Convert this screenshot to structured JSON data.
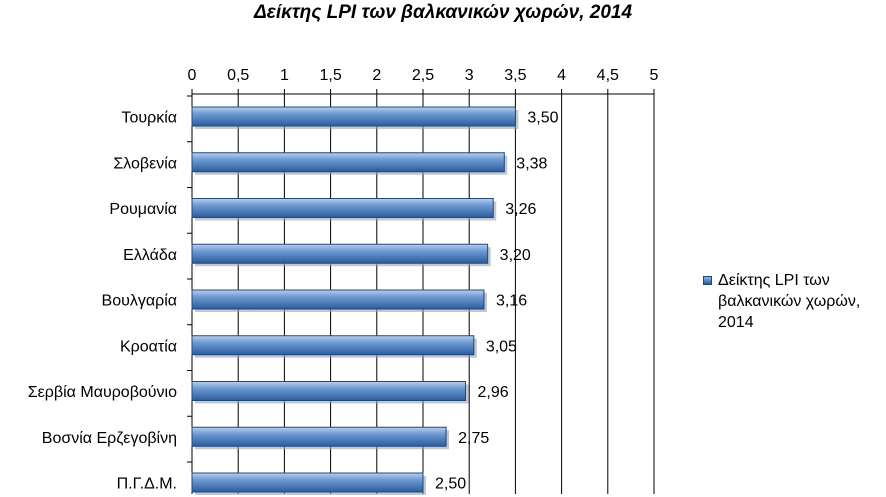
{
  "chart_data": {
    "type": "bar",
    "orientation": "horizontal",
    "title": "Δείκτης LPI των βαλκανικών χωρών, 2014",
    "categories": [
      "Τουρκία",
      "Σλοβενία",
      "Ρουμανία",
      "Ελλάδα",
      "Βουλγαρία",
      "Κροατία",
      "Σερβία Μαυροβούνιο",
      "Βοσνία Ερζεγοβίνη",
      "Π.Γ.Δ.Μ."
    ],
    "series": [
      {
        "name": "Δείκτης LPI των βαλκανικών χωρών, 2014",
        "values": [
          3.5,
          3.38,
          3.26,
          3.2,
          3.16,
          3.05,
          2.96,
          2.75,
          2.5
        ],
        "data_labels": [
          "3,50",
          "3,38",
          "3,26",
          "3,20",
          "3,16",
          "3,05",
          "2,96",
          "2,75",
          "2,50"
        ]
      }
    ],
    "xlim": [
      0,
      5
    ],
    "ticks": [
      0,
      0.5,
      1,
      1.5,
      2,
      2.5,
      3,
      3.5,
      4,
      4.5,
      5
    ],
    "tick_labels": [
      "0",
      "0,5",
      "1",
      "1,5",
      "2",
      "2,5",
      "3",
      "3,5",
      "4",
      "4,5",
      "5"
    ],
    "axis_position": "top",
    "grid": true,
    "legend": "right",
    "bar_color": "#4f81bd"
  }
}
